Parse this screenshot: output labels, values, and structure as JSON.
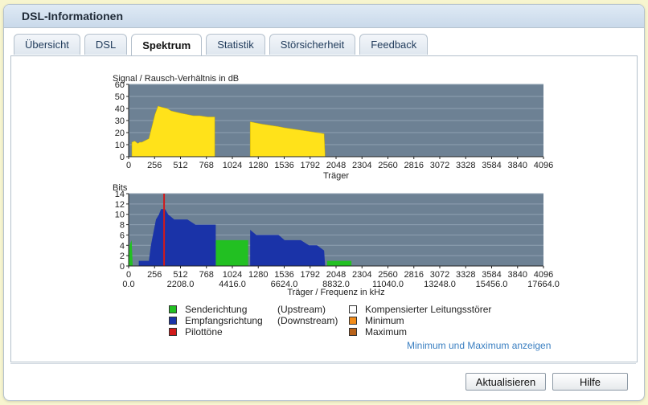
{
  "window": {
    "title": "DSL-Informationen"
  },
  "tabs": [
    {
      "label": "Übersicht",
      "active": false
    },
    {
      "label": "DSL",
      "active": false
    },
    {
      "label": "Spektrum",
      "active": true
    },
    {
      "label": "Statistik",
      "active": false
    },
    {
      "label": "Störsicherheit",
      "active": false
    },
    {
      "label": "Feedback",
      "active": false
    }
  ],
  "legend": {
    "col1": [
      {
        "label": "Senderichtung",
        "color": "#22c022"
      },
      {
        "label": "Empfangsrichtung",
        "color": "#1a33a8"
      },
      {
        "label": "Pilottöne",
        "color": "#d11a1a"
      }
    ],
    "col2": [
      "(Upstream)",
      "(Downstream)"
    ],
    "col3": [
      {
        "label": "Kompensierter Leitungsstörer",
        "color": "#ffffff"
      },
      {
        "label": "Minimum",
        "color": "#f28c1a"
      },
      {
        "label": "Maximum",
        "color": "#b8621a"
      }
    ]
  },
  "link_label": "Minimum und Maximum anzeigen",
  "buttons": {
    "refresh": "Aktualisieren",
    "help": "Hilfe"
  },
  "colors": {
    "plot_bg": "#6d8194",
    "snr_fill": "#ffe21a",
    "up": "#22c022",
    "down": "#1a33a8",
    "pilot": "#d11a1a"
  },
  "chart_data": [
    {
      "type": "area",
      "ylabel": "Signal / Rausch-Verhältnis in dB",
      "xlabel": "Träger",
      "ylim": [
        0,
        60
      ],
      "yticks": [
        0,
        10,
        20,
        30,
        40,
        50,
        60
      ],
      "xlim": [
        0,
        4096
      ],
      "xticks": [
        0,
        256,
        512,
        768,
        1024,
        1280,
        1536,
        1792,
        2048,
        2304,
        2560,
        2816,
        3072,
        3328,
        3584,
        3840,
        4096
      ],
      "series": [
        {
          "points": [
            [
              32,
              12
            ],
            [
              60,
              13
            ],
            [
              90,
              11
            ],
            [
              110,
              12
            ],
            [
              130,
              12
            ],
            [
              200,
              15
            ],
            [
              230,
              25
            ],
            [
              260,
              35
            ],
            [
              290,
              42
            ],
            [
              330,
              41
            ],
            [
              380,
              40
            ],
            [
              420,
              38
            ],
            [
              470,
              37
            ],
            [
              520,
              36
            ],
            [
              580,
              35
            ],
            [
              640,
              34
            ],
            [
              700,
              34
            ],
            [
              780,
              33
            ],
            [
              850,
              33
            ],
            [
              850,
              0
            ],
            [
              1200,
              0
            ],
            [
              1200,
              29
            ],
            [
              1260,
              28
            ],
            [
              1320,
              27
            ],
            [
              1400,
              26
            ],
            [
              1480,
              25
            ],
            [
              1540,
              24
            ],
            [
              1620,
              23
            ],
            [
              1700,
              22
            ],
            [
              1780,
              21
            ],
            [
              1860,
              20
            ],
            [
              1930,
              19
            ],
            [
              1940,
              0
            ]
          ]
        }
      ]
    },
    {
      "type": "bar",
      "ylabel": "Bits",
      "xlabel": "Träger / Frequenz in kHz",
      "ylim": [
        0,
        14
      ],
      "yticks": [
        0,
        2,
        4,
        6,
        8,
        10,
        12,
        14
      ],
      "xlim": [
        0,
        4096
      ],
      "xticks": [
        0,
        256,
        512,
        768,
        1024,
        1280,
        1536,
        1792,
        2048,
        2304,
        2560,
        2816,
        3072,
        3328,
        3584,
        3840,
        4096
      ],
      "xfreq": [
        {
          "at": 0,
          "label": "0.0"
        },
        {
          "at": 512,
          "label": "2208.0"
        },
        {
          "at": 1024,
          "label": "4416.0"
        },
        {
          "at": 1536,
          "label": "6624.0"
        },
        {
          "at": 2048,
          "label": "8832.0"
        },
        {
          "at": 2560,
          "label": "11040.0"
        },
        {
          "at": 3072,
          "label": "13248.0"
        },
        {
          "at": 3584,
          "label": "15456.0"
        },
        {
          "at": 4096,
          "label": "17664.0"
        }
      ],
      "upstream": [
        [
          [
            0,
            0
          ],
          [
            8,
            4
          ],
          [
            30,
            5
          ],
          [
            40,
            0
          ]
        ],
        [
          [
            860,
            0
          ],
          [
            860,
            5
          ],
          [
            1180,
            5
          ],
          [
            1180,
            0
          ]
        ],
        [
          [
            1960,
            0
          ],
          [
            1960,
            1
          ],
          [
            2200,
            1
          ],
          [
            2200,
            0
          ]
        ]
      ],
      "downstream": [
        [
          [
            100,
            0
          ],
          [
            100,
            1
          ],
          [
            200,
            1
          ],
          [
            220,
            4
          ],
          [
            250,
            7
          ],
          [
            270,
            9
          ],
          [
            300,
            10
          ],
          [
            320,
            11
          ],
          [
            360,
            11
          ],
          [
            390,
            10
          ],
          [
            450,
            9
          ],
          [
            520,
            9
          ],
          [
            580,
            9
          ],
          [
            660,
            8
          ],
          [
            740,
            8
          ],
          [
            820,
            8
          ],
          [
            860,
            8
          ],
          [
            860,
            0
          ]
        ],
        [
          [
            1200,
            0
          ],
          [
            1200,
            7
          ],
          [
            1260,
            6
          ],
          [
            1320,
            6
          ],
          [
            1400,
            6
          ],
          [
            1480,
            6
          ],
          [
            1540,
            5
          ],
          [
            1620,
            5
          ],
          [
            1700,
            5
          ],
          [
            1780,
            4
          ],
          [
            1860,
            4
          ],
          [
            1930,
            3
          ],
          [
            1940,
            0
          ]
        ]
      ],
      "pilot_tone": [
        350,
        14
      ]
    }
  ]
}
